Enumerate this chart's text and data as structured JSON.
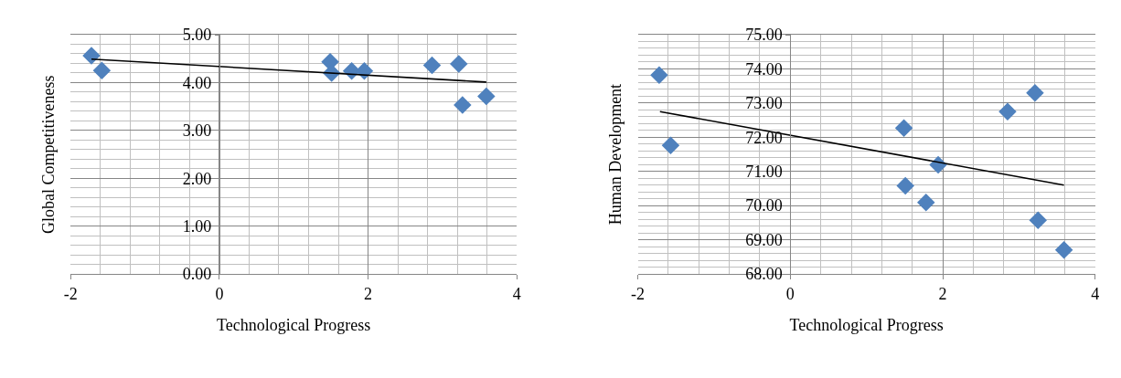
{
  "chart_data": [
    {
      "type": "scatter",
      "xlabel": "Technological Progress",
      "ylabel": "Global Competitiveness",
      "xlim": [
        -2,
        4
      ],
      "xticks": [
        -2,
        0,
        2,
        4
      ],
      "ylim": [
        0,
        5
      ],
      "yticks": [
        {
          "value": 0,
          "label": "0.00"
        },
        {
          "value": 1,
          "label": "1.00"
        },
        {
          "value": 2,
          "label": "2.00"
        },
        {
          "value": 3,
          "label": "3.00"
        },
        {
          "value": 4,
          "label": "4.00"
        },
        {
          "value": 5,
          "label": "5.00"
        }
      ],
      "grid": true,
      "series": [
        {
          "marker": "diamond",
          "color": "#4f81bd",
          "x": [
            -1.72,
            -1.58,
            1.49,
            1.51,
            1.78,
            1.95,
            2.86,
            3.22,
            3.27,
            3.59
          ],
          "values": [
            4.56,
            4.25,
            4.43,
            4.2,
            4.24,
            4.24,
            4.36,
            4.39,
            3.53,
            3.71
          ]
        },
        {
          "type": "line",
          "marker": "none",
          "line_style": "solid",
          "color": "#000000",
          "x": [
            -1.72,
            3.59
          ],
          "values": [
            4.49,
            4.01
          ]
        }
      ]
    },
    {
      "type": "scatter",
      "xlabel": "Technological Progress",
      "ylabel": "Human Development",
      "xlim": [
        -2,
        4
      ],
      "xticks": [
        -2,
        0,
        2,
        4
      ],
      "ylim": [
        68,
        75
      ],
      "yticks": [
        {
          "value": 68,
          "label": "68.00"
        },
        {
          "value": 69,
          "label": "69.00"
        },
        {
          "value": 70,
          "label": "70.00"
        },
        {
          "value": 71,
          "label": "71.00"
        },
        {
          "value": 72,
          "label": "72.00"
        },
        {
          "value": 73,
          "label": "73.00"
        },
        {
          "value": 74,
          "label": "74.00"
        },
        {
          "value": 75,
          "label": "75.00"
        }
      ],
      "grid": true,
      "series": [
        {
          "marker": "diamond",
          "color": "#4f81bd",
          "x": [
            -1.72,
            -1.57,
            1.49,
            1.51,
            1.78,
            1.94,
            2.85,
            3.21,
            3.25,
            3.59
          ],
          "values": [
            73.82,
            71.76,
            72.27,
            70.58,
            70.09,
            71.19,
            72.75,
            73.3,
            69.57,
            68.7
          ]
        },
        {
          "type": "line",
          "marker": "none",
          "line_style": "solid",
          "color": "#000000",
          "x": [
            -1.71,
            3.59
          ],
          "values": [
            72.75,
            70.6
          ]
        }
      ]
    }
  ]
}
